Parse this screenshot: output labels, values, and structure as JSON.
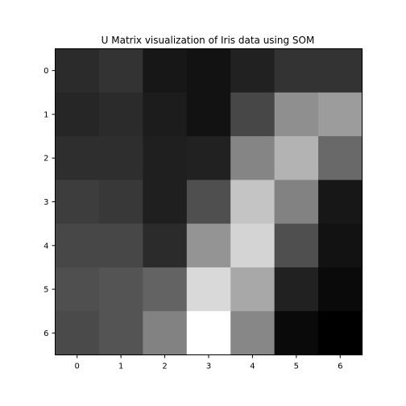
{
  "chart_data": {
    "type": "heatmap",
    "title": "U Matrix visualization of Iris data using SOM",
    "xlabel": "",
    "ylabel": "",
    "x_categories": [
      "0",
      "1",
      "2",
      "3",
      "4",
      "5",
      "6"
    ],
    "y_categories": [
      "0",
      "1",
      "2",
      "3",
      "4",
      "5",
      "6"
    ],
    "colormap": "gray",
    "value_range": [
      0,
      1
    ],
    "values": [
      [
        0.17,
        0.2,
        0.09,
        0.07,
        0.13,
        0.2,
        0.2
      ],
      [
        0.15,
        0.17,
        0.11,
        0.07,
        0.28,
        0.56,
        0.61
      ],
      [
        0.18,
        0.18,
        0.12,
        0.13,
        0.52,
        0.7,
        0.41
      ],
      [
        0.24,
        0.22,
        0.12,
        0.31,
        0.77,
        0.51,
        0.09
      ],
      [
        0.28,
        0.28,
        0.17,
        0.58,
        0.83,
        0.31,
        0.07
      ],
      [
        0.31,
        0.33,
        0.39,
        0.85,
        0.66,
        0.13,
        0.04
      ],
      [
        0.29,
        0.33,
        0.51,
        1.0,
        0.53,
        0.04,
        0.0
      ]
    ]
  }
}
